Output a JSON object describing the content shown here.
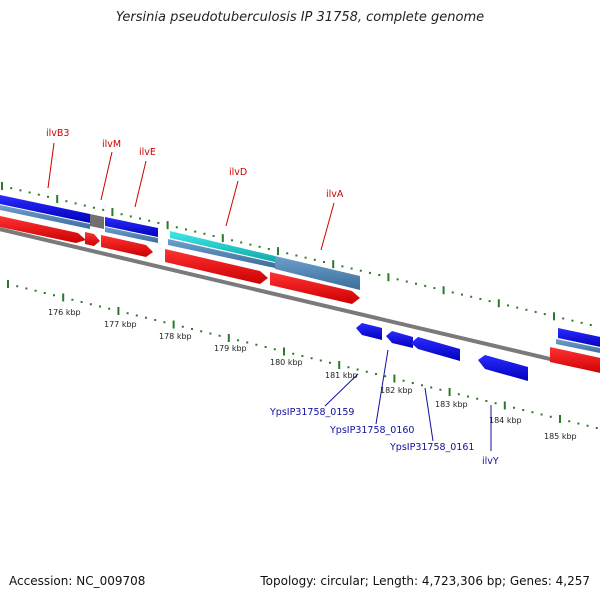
{
  "title": "Yersinia pseudotuberculosis IP 31758, complete genome",
  "footer": {
    "accession": "Accession: NC_009708",
    "stats": "Topology: circular; Length: 4,723,306 bp; Genes: 4,257"
  },
  "scale": {
    "ticks": [
      "176 kbp",
      "177 kbp",
      "178 kbp",
      "179 kbp",
      "180 kbp",
      "181 kbp",
      "182 kbp",
      "183 kbp",
      "184 kbp",
      "185 kbp"
    ]
  },
  "labels": {
    "top_genes": [
      "ilvB3",
      "ilvM",
      "ilvE",
      "ilvD",
      "ilvA"
    ],
    "bottom_genes": [
      "YpsIP31758_0159",
      "YpsIP31758_0160",
      "YpsIP31758_0161",
      "ilvY"
    ]
  },
  "colors": {
    "forward_cds": "#ff0000",
    "reverse_cds": "#1010ee",
    "feature_steel": "#4a82b4",
    "feature_cyan": "#19c8c8",
    "backbone": "#808080",
    "gc_ticks": "#2a7a2a"
  }
}
